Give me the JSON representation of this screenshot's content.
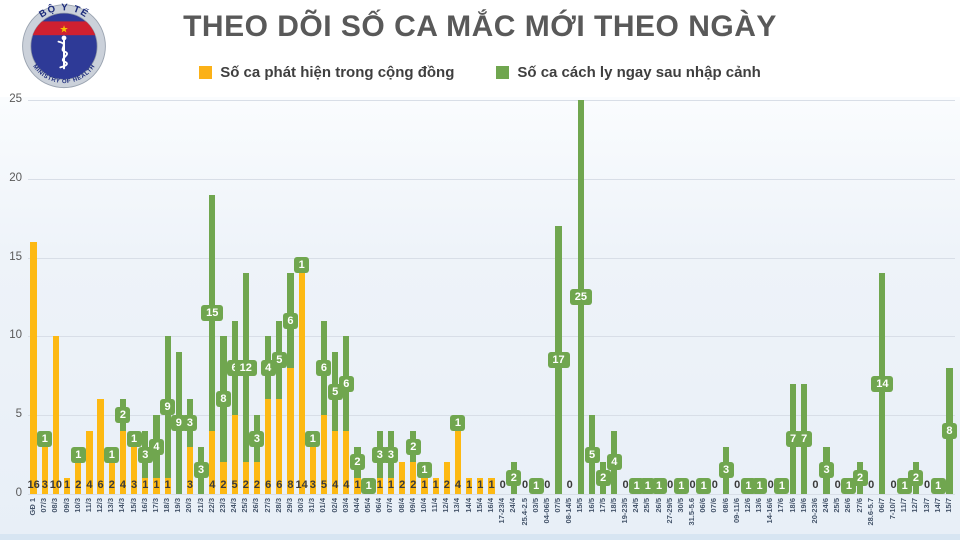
{
  "title": "THEO DÕI SỐ CA MẮC MỚI THEO NGÀY",
  "logo": {
    "top_text": "BỘ Y TẾ",
    "bottom_text": "MINISTRY OF HEALTH",
    "colors": {
      "ring": "#cbd1da",
      "inner": "#2e3a97",
      "band": "#cf2030",
      "star": "#f8c300",
      "emblem": "#ffffff",
      "text": "#1b2a7b"
    }
  },
  "legend": [
    {
      "label": "Số ca phát hiện trong cộng đồng",
      "color": "#fbb117"
    },
    {
      "label": "Số ca cách ly ngay sau nhập cảnh",
      "color": "#70a64f"
    }
  ],
  "chart_data": {
    "type": "bar",
    "stacked": true,
    "title": "THEO DÕI SỐ CA MẮC MỚI THEO NGÀY",
    "xlabel": "",
    "ylabel": "",
    "ylim": [
      0,
      25
    ],
    "yticks": [
      0,
      5,
      10,
      15,
      20,
      25
    ],
    "grid": true,
    "legend_position": "top",
    "colors": {
      "community": "#fdb913",
      "entry": "#70a64f"
    },
    "series_names": [
      "Số ca phát hiện trong cộng đồng",
      "Số ca cách ly ngay sau nhập cảnh"
    ],
    "bars": [
      {
        "date": "GĐ 1",
        "community": 16,
        "entry": 0,
        "label": "16"
      },
      {
        "date": "07/3",
        "community": 3,
        "entry": 1,
        "label": "3"
      },
      {
        "date": "08/3",
        "community": 10,
        "entry": 0,
        "label": "10"
      },
      {
        "date": "09/3",
        "community": 1,
        "entry": 0,
        "label": "1"
      },
      {
        "date": "10/3",
        "community": 2,
        "entry": 1,
        "label": "2"
      },
      {
        "date": "11/3",
        "community": 4,
        "entry": 0,
        "label": "4"
      },
      {
        "date": "12/3",
        "community": 6,
        "entry": 0,
        "label": "6"
      },
      {
        "date": "13/3",
        "community": 2,
        "entry": 1,
        "label": "2"
      },
      {
        "date": "14/3",
        "community": 4,
        "entry": 2,
        "label": "4"
      },
      {
        "date": "15/3",
        "community": 3,
        "entry": 1,
        "label": "3"
      },
      {
        "date": "16/3",
        "community": 1,
        "entry": 3,
        "label": "1"
      },
      {
        "date": "17/3",
        "community": 1,
        "entry": 4,
        "label": "1"
      },
      {
        "date": "18/3",
        "community": 1,
        "entry": 9,
        "label": "1"
      },
      {
        "date": "19/3",
        "community": 0,
        "entry": 9,
        "label": ""
      },
      {
        "date": "20/3",
        "community": 3,
        "entry": 3,
        "label": "3"
      },
      {
        "date": "21/3",
        "community": 0,
        "entry": 3,
        "label": ""
      },
      {
        "date": "22/3",
        "community": 4,
        "entry": 15,
        "label": "4"
      },
      {
        "date": "23/3",
        "community": 2,
        "entry": 8,
        "label": "2"
      },
      {
        "date": "24/3",
        "community": 5,
        "entry": 6,
        "label": "5"
      },
      {
        "date": "25/3",
        "community": 2,
        "entry": 12,
        "label": "2"
      },
      {
        "date": "26/3",
        "community": 2,
        "entry": 3,
        "label": "2"
      },
      {
        "date": "27/3",
        "community": 6,
        "entry": 4,
        "label": "6"
      },
      {
        "date": "28/3",
        "community": 6,
        "entry": 5,
        "label": "6"
      },
      {
        "date": "29/3",
        "community": 8,
        "entry": 6,
        "label": "8"
      },
      {
        "date": "30/3",
        "community": 14,
        "entry": 1,
        "label": "14"
      },
      {
        "date": "31/3",
        "community": 3,
        "entry": 1,
        "label": "3"
      },
      {
        "date": "01/4",
        "community": 5,
        "entry": 6,
        "label": "5"
      },
      {
        "date": "02/4",
        "community": 4,
        "entry": 5,
        "label": "4"
      },
      {
        "date": "03/4",
        "community": 4,
        "entry": 6,
        "label": "4"
      },
      {
        "date": "04/4",
        "community": 1,
        "entry": 2,
        "label": "1"
      },
      {
        "date": "05/4",
        "community": 0,
        "entry": 1,
        "label": ""
      },
      {
        "date": "06/4",
        "community": 1,
        "entry": 3,
        "label": "1"
      },
      {
        "date": "07/4",
        "community": 1,
        "entry": 3,
        "label": "1"
      },
      {
        "date": "08/4",
        "community": 2,
        "entry": 0,
        "label": "2"
      },
      {
        "date": "09/4",
        "community": 2,
        "entry": 2,
        "label": "2"
      },
      {
        "date": "10/4",
        "community": 1,
        "entry": 1,
        "label": "1"
      },
      {
        "date": "11/4",
        "community": 1,
        "entry": 0,
        "label": "1"
      },
      {
        "date": "12/4",
        "community": 2,
        "entry": 0,
        "label": "2"
      },
      {
        "date": "13/4",
        "community": 4,
        "entry": 1,
        "label": "4"
      },
      {
        "date": "14/4",
        "community": 1,
        "entry": 0,
        "label": "1"
      },
      {
        "date": "15/4",
        "community": 1,
        "entry": 0,
        "label": "1"
      },
      {
        "date": "16/4",
        "community": 1,
        "entry": 0,
        "label": "1"
      },
      {
        "date": "17-23/4",
        "community": 0,
        "entry": 0,
        "label": "0"
      },
      {
        "date": "24/4",
        "community": 0,
        "entry": 2,
        "label": ""
      },
      {
        "date": "25.4-2.5",
        "community": 0,
        "entry": 0,
        "label": "0"
      },
      {
        "date": "03/5",
        "community": 0,
        "entry": 1,
        "label": ""
      },
      {
        "date": "04-06/5",
        "community": 0,
        "entry": 0,
        "label": "0"
      },
      {
        "date": "07/5",
        "community": 0,
        "entry": 17,
        "label": ""
      },
      {
        "date": "08-14/5",
        "community": 0,
        "entry": 0,
        "label": "0"
      },
      {
        "date": "15/5",
        "community": 0,
        "entry": 25,
        "label": ""
      },
      {
        "date": "16/5",
        "community": 0,
        "entry": 5,
        "label": ""
      },
      {
        "date": "17/5",
        "community": 0,
        "entry": 2,
        "label": ""
      },
      {
        "date": "18/5",
        "community": 0,
        "entry": 4,
        "label": ""
      },
      {
        "date": "19-23/5",
        "community": 0,
        "entry": 0,
        "label": "0"
      },
      {
        "date": "24/5",
        "community": 0,
        "entry": 1,
        "label": ""
      },
      {
        "date": "25/5",
        "community": 0,
        "entry": 1,
        "label": ""
      },
      {
        "date": "26/5",
        "community": 0,
        "entry": 1,
        "label": ""
      },
      {
        "date": "27-29/5",
        "community": 0,
        "entry": 0,
        "label": "0"
      },
      {
        "date": "30/5",
        "community": 0,
        "entry": 1,
        "label": ""
      },
      {
        "date": "31.5-5.6",
        "community": 0,
        "entry": 0,
        "label": "0"
      },
      {
        "date": "06/6",
        "community": 0,
        "entry": 1,
        "label": ""
      },
      {
        "date": "07/6",
        "community": 0,
        "entry": 0,
        "label": "0"
      },
      {
        "date": "08/6",
        "community": 0,
        "entry": 3,
        "label": ""
      },
      {
        "date": "09-11/6",
        "community": 0,
        "entry": 0,
        "label": "0"
      },
      {
        "date": "12/6",
        "community": 0,
        "entry": 1,
        "label": ""
      },
      {
        "date": "13/6",
        "community": 0,
        "entry": 1,
        "label": ""
      },
      {
        "date": "14-16/6",
        "community": 0,
        "entry": 0,
        "label": "0"
      },
      {
        "date": "17/6",
        "community": 0,
        "entry": 1,
        "label": ""
      },
      {
        "date": "18/6",
        "community": 0,
        "entry": 7,
        "label": ""
      },
      {
        "date": "19/6",
        "community": 0,
        "entry": 7,
        "label": ""
      },
      {
        "date": "20-23/6",
        "community": 0,
        "entry": 0,
        "label": "0"
      },
      {
        "date": "24/6",
        "community": 0,
        "entry": 3,
        "label": ""
      },
      {
        "date": "25/5",
        "community": 0,
        "entry": 0,
        "label": "0"
      },
      {
        "date": "26/6",
        "community": 0,
        "entry": 1,
        "label": ""
      },
      {
        "date": "27/6",
        "community": 0,
        "entry": 2,
        "label": ""
      },
      {
        "date": "28.6-5.7",
        "community": 0,
        "entry": 0,
        "label": "0"
      },
      {
        "date": "06/7",
        "community": 0,
        "entry": 14,
        "label": ""
      },
      {
        "date": "7-10/7",
        "community": 0,
        "entry": 0,
        "label": "0"
      },
      {
        "date": "11/7",
        "community": 0,
        "entry": 1,
        "label": ""
      },
      {
        "date": "12/7",
        "community": 0,
        "entry": 2,
        "label": ""
      },
      {
        "date": "13/7",
        "community": 0,
        "entry": 0,
        "label": "0"
      },
      {
        "date": "14/7",
        "community": 0,
        "entry": 1,
        "label": ""
      },
      {
        "date": "15/7",
        "community": 0,
        "entry": 8,
        "label": ""
      }
    ]
  }
}
